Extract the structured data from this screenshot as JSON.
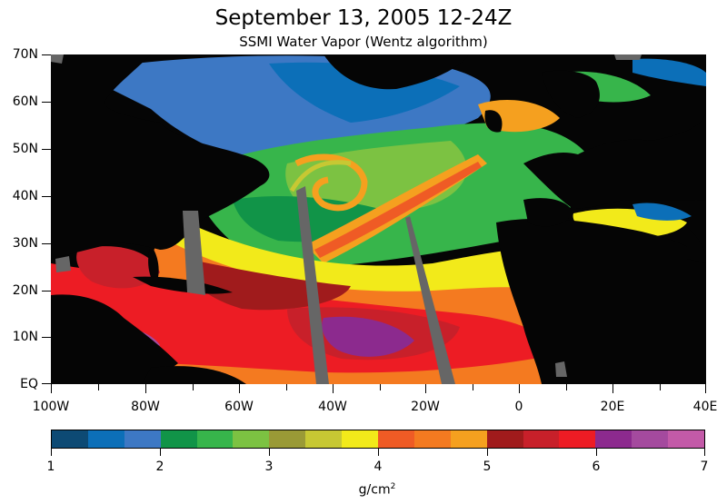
{
  "title": "September 13, 2005 12-24Z",
  "subtitle": "SSMI Water Vapor (Wentz algorithm)",
  "map": {
    "latitude_labels": [
      "70N",
      "60N",
      "50N",
      "40N",
      "30N",
      "20N",
      "10N",
      "EQ"
    ],
    "longitude_labels": [
      "100W",
      "80W",
      "60W",
      "40W",
      "20W",
      "0",
      "20E",
      "40E"
    ],
    "region": "North Atlantic",
    "land_color": "#050505",
    "missing_data_color": "#666666"
  },
  "colorbar": {
    "tick_labels": [
      "1",
      "2",
      "3",
      "4",
      "5",
      "6",
      "7"
    ],
    "units_text": "g/cm",
    "units_superscript": "2",
    "colors": [
      "#0d4a74",
      "#0c6fb8",
      "#3d78c4",
      "#119448",
      "#37b54b",
      "#7cc242",
      "#9a9a36",
      "#c7c833",
      "#f2ea1a",
      "#ef5b25",
      "#f47a20",
      "#f5a01f",
      "#a01b1c",
      "#c8202a",
      "#ed1c24",
      "#8c2a8e",
      "#a44a9e",
      "#c35aa8"
    ]
  }
}
